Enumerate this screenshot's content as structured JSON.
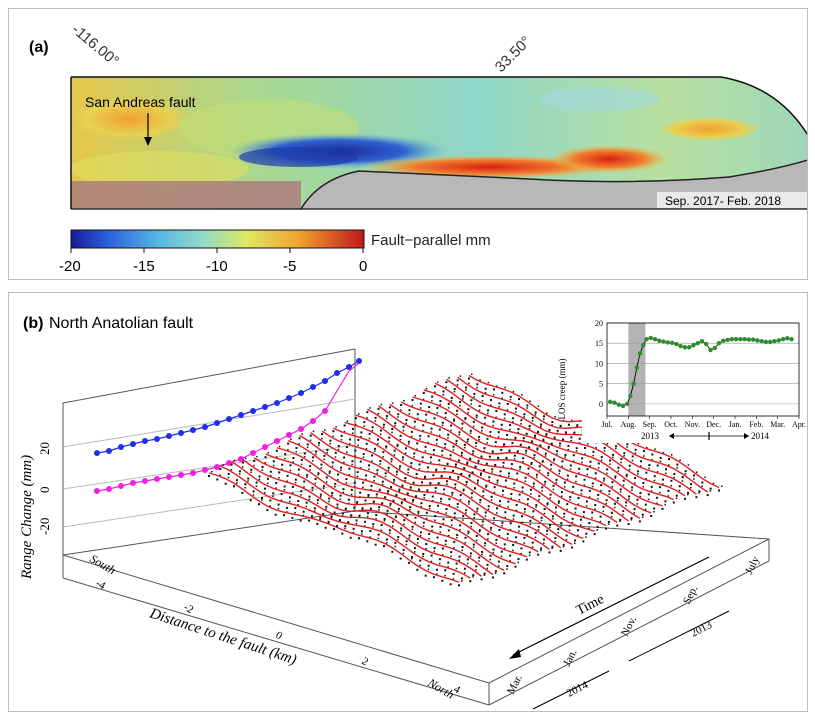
{
  "panel_a": {
    "label": "(a)",
    "lon_label": "-116.00°",
    "lat_label": "33.50°",
    "fault_label": "San Andreas fault",
    "date_label": "Sep. 2017- Feb. 2018",
    "colorbar_title": "Fault−parallel mm",
    "colorbar_ticks": [
      "-20",
      "-15",
      "-10",
      "-5",
      "0"
    ]
  },
  "panel_b": {
    "label": "(b)",
    "title": "North Anatolian fault",
    "y_axis_label": "Range Change (mm)",
    "y_ticks": [
      "20",
      "0",
      "-20"
    ],
    "x_axis_label": "Distance to the fault (km)",
    "x_ticks": [
      "-4",
      "-2",
      "0",
      "2",
      "4"
    ],
    "south_label": "South",
    "north_label": "North",
    "time_label": "Time",
    "time_ticks": [
      "Mar.",
      "Jan.",
      "Nov.",
      "Sep.",
      "July"
    ],
    "year_2014": "2014",
    "year_2013": "2013"
  },
  "inset": {
    "ylabel": "LOS creep (mm)",
    "y_ticks": [
      "0",
      "5",
      "10",
      "15",
      "20"
    ],
    "x_ticks": [
      "Jul.",
      "Aug.",
      "Sep.",
      "Oct.",
      "Nov.",
      "Dec.",
      "Jan.",
      "Feb.",
      "Mar.",
      "Apr."
    ],
    "year_2013": "2013",
    "year_2014": "2014"
  },
  "chart_data": {
    "type": "line",
    "ylabel": "LOS creep (mm)",
    "categories": [
      "Jul.",
      "Aug.",
      "Sep.",
      "Oct.",
      "Nov.",
      "Dec.",
      "Jan.",
      "Feb.",
      "Mar.",
      "Apr."
    ],
    "ylim": [
      -3,
      20
    ],
    "grid": true,
    "shaded_interval": [
      1.0,
      1.8
    ],
    "series": [
      {
        "color": "#2e8b2e",
        "x": [
          0.15,
          0.35,
          0.55,
          0.75,
          0.95,
          1.1,
          1.25,
          1.4,
          1.55,
          1.7,
          1.85,
          2.05,
          2.25,
          2.45,
          2.65,
          2.85,
          3.05,
          3.25,
          3.45,
          3.65,
          3.85,
          4.05,
          4.25,
          4.45,
          4.65,
          4.85,
          5.05,
          5.25,
          5.45,
          5.65,
          5.85,
          6.05,
          6.25,
          6.45,
          6.65,
          6.85,
          7.05,
          7.25,
          7.45,
          7.65,
          7.85,
          8.05,
          8.25,
          8.45,
          8.65
        ],
        "values": [
          0.5,
          0.3,
          -0.2,
          -0.5,
          0.0,
          2.0,
          5.0,
          9.0,
          12.5,
          14.5,
          16.0,
          16.3,
          16.0,
          15.6,
          15.4,
          15.2,
          15.1,
          14.8,
          14.3,
          14.0,
          14.0,
          14.5,
          15.0,
          15.5,
          14.8,
          13.3,
          13.8,
          15.0,
          15.6,
          15.8,
          16.0,
          16.0,
          16.0,
          16.0,
          15.9,
          15.9,
          15.7,
          15.5,
          15.3,
          15.3,
          15.5,
          15.7,
          16.0,
          16.2,
          16.0
        ]
      }
    ]
  },
  "colors": {
    "blue_series": "#1f2ee8",
    "magenta_series": "#f020e0",
    "red_profiles": "#e0201c",
    "inset_green": "#2e8b2e",
    "shade": "#b3b3b3"
  }
}
